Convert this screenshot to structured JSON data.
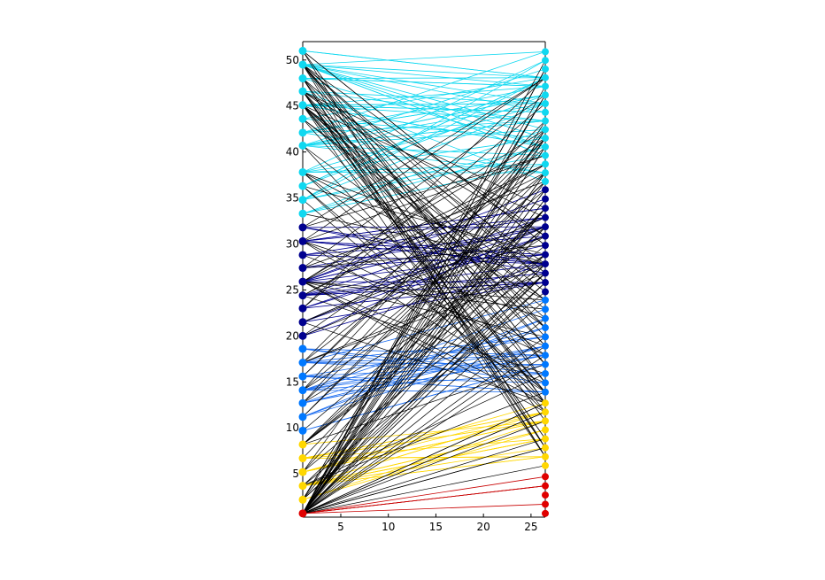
{
  "chart_data": {
    "type": "line",
    "title": "",
    "xlabel": "",
    "ylabel": "",
    "xlim": [
      1,
      26.5
    ],
    "ylim": [
      0.3,
      52
    ],
    "grid": false,
    "legend": "none",
    "x_ticks": [
      5,
      10,
      15,
      20,
      25
    ],
    "y_ticks": [
      5,
      10,
      15,
      20,
      25,
      30,
      35,
      40,
      45,
      50
    ],
    "left_column": {
      "x": 1,
      "marker_size": "large",
      "points": [
        {
          "y": 0.7,
          "color": "#e00000"
        },
        {
          "y": 2.2,
          "color": "#ffd700"
        },
        {
          "y": 3.7,
          "color": "#ffd700"
        },
        {
          "y": 5.2,
          "color": "#ffd700"
        },
        {
          "y": 6.7,
          "color": "#ffd700"
        },
        {
          "y": 8.2,
          "color": "#ffd700"
        },
        {
          "y": 9.7,
          "color": "#0078ff"
        },
        {
          "y": 11.2,
          "color": "#0078ff"
        },
        {
          "y": 12.7,
          "color": "#0078ff"
        },
        {
          "y": 14.1,
          "color": "#0078ff"
        },
        {
          "y": 15.6,
          "color": "#0078ff"
        },
        {
          "y": 17.1,
          "color": "#0078ff"
        },
        {
          "y": 18.6,
          "color": "#0078ff"
        },
        {
          "y": 20.0,
          "color": "#00008f"
        },
        {
          "y": 21.5,
          "color": "#00008f"
        },
        {
          "y": 23.0,
          "color": "#00008f"
        },
        {
          "y": 24.4,
          "color": "#00008f"
        },
        {
          "y": 25.9,
          "color": "#00008f"
        },
        {
          "y": 27.4,
          "color": "#00008f"
        },
        {
          "y": 28.8,
          "color": "#00008f"
        },
        {
          "y": 30.3,
          "color": "#00008f"
        },
        {
          "y": 31.8,
          "color": "#00008f"
        },
        {
          "y": 33.3,
          "color": "#10d8f0"
        },
        {
          "y": 34.8,
          "color": "#10d8f0"
        },
        {
          "y": 36.3,
          "color": "#10d8f0"
        },
        {
          "y": 37.8,
          "color": "#10d8f0"
        },
        {
          "y": 40.7,
          "color": "#10d8f0"
        },
        {
          "y": 42.1,
          "color": "#10d8f0"
        },
        {
          "y": 43.6,
          "color": "#10d8f0"
        },
        {
          "y": 45.1,
          "color": "#10d8f0"
        },
        {
          "y": 46.6,
          "color": "#10d8f0"
        },
        {
          "y": 48.0,
          "color": "#10d8f0"
        },
        {
          "y": 49.5,
          "color": "#10d8f0"
        },
        {
          "y": 51.0,
          "color": "#10d8f0"
        }
      ]
    },
    "right_column": {
      "x": 26.5,
      "marker_size": "medium",
      "groups": [
        {
          "color": "#e00000",
          "y_start": 0.7,
          "y_end": 4.7,
          "count": 5
        },
        {
          "color": "#ffd700",
          "y_start": 5.9,
          "y_end": 12.7,
          "count": 8
        },
        {
          "color": "#0078ff",
          "y_start": 13.9,
          "y_end": 23.9,
          "count": 11
        },
        {
          "color": "#00008f",
          "y_start": 24.8,
          "y_end": 35.9,
          "count": 12
        },
        {
          "color": "#10d8f0",
          "y_start": 36.8,
          "y_end": 50.9,
          "count": 16
        }
      ]
    },
    "connection_colors": {
      "red": "#c80000",
      "yellow": "#ffd700",
      "blue": "#1e6ef0",
      "navy": "#00008f",
      "cyan": "#10d8f0",
      "cross": "#000000"
    },
    "same_group_connections": [
      {
        "group": "red",
        "from_y": 0.7,
        "count": 5
      },
      {
        "group": "yellow",
        "from_y_range": [
          2.2,
          8.2
        ],
        "count": 25
      },
      {
        "group": "blue",
        "from_y_range": [
          9.7,
          18.6
        ],
        "count": 30
      },
      {
        "group": "navy",
        "from_y_range": [
          20.0,
          31.8
        ],
        "count": 35
      },
      {
        "group": "cyan",
        "from_y_range": [
          33.3,
          51.0
        ],
        "count": 60
      }
    ],
    "cross_group_connections": [
      {
        "from_y": 0.7,
        "to_y_range": [
          6,
          50
        ],
        "count": 40
      },
      {
        "from_y_range": [
          45,
          51
        ],
        "to_y_range": [
          6,
          36
        ],
        "count": 35
      },
      {
        "from_y_range": [
          20,
          32
        ],
        "to_y_range": [
          6,
          50
        ],
        "count": 30
      },
      {
        "from_y_range": [
          2,
          9
        ],
        "to_y_range": [
          14,
          48
        ],
        "count": 20
      },
      {
        "from_y_range": [
          10,
          19
        ],
        "to_y_range": [
          25,
          45
        ],
        "count": 15
      },
      {
        "from_y_range": [
          33,
          45
        ],
        "to_y_range": [
          8,
          30
        ],
        "count": 15
      }
    ]
  }
}
